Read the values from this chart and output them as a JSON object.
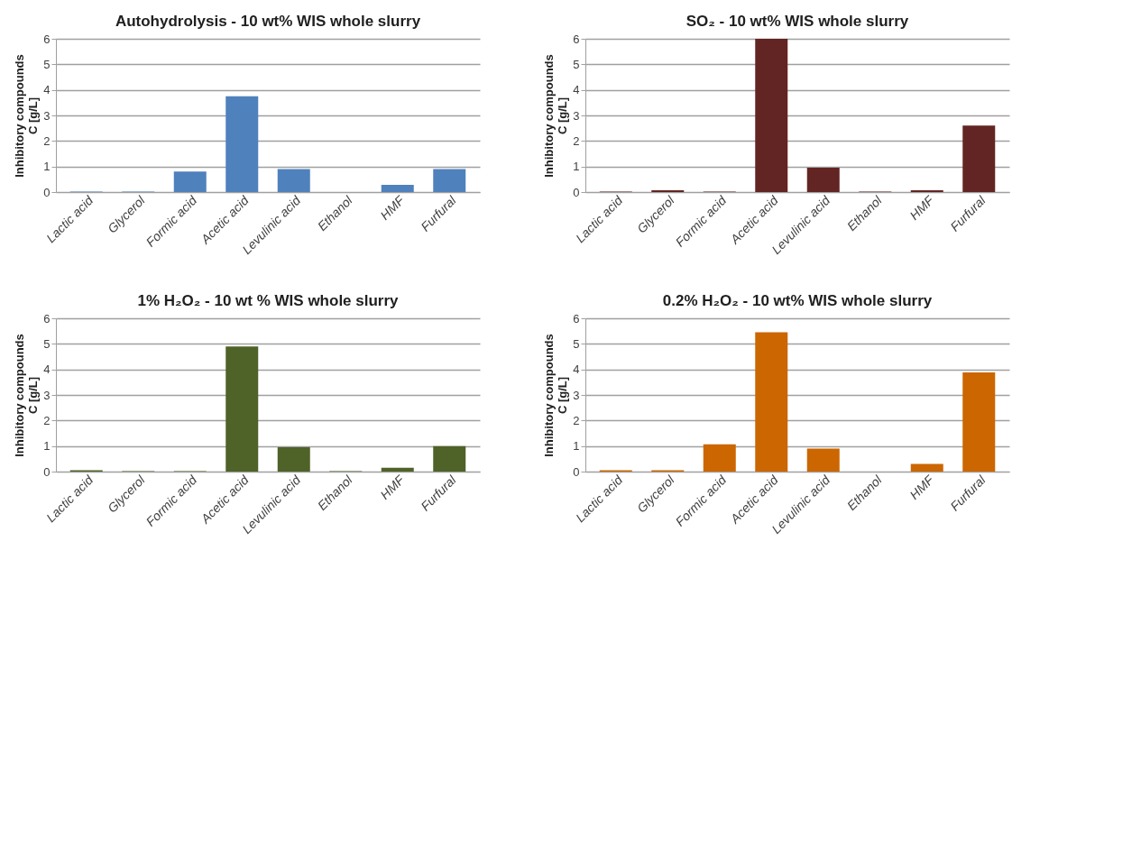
{
  "chart_data": [
    {
      "type": "bar",
      "title": "Autohydrolysis - 10 wt% WIS whole slurry",
      "ylabel": "Inhibitory compounds\nC [g/L]",
      "categories": [
        "Lactic acid",
        "Glycerol",
        "Formic acid",
        "Acetic acid",
        "Levulinic acid",
        "Ethanol",
        "HMF",
        "Furfural"
      ],
      "values": [
        0.02,
        0.02,
        0.8,
        3.75,
        0.9,
        0,
        0.28,
        0.9
      ],
      "color": "#4f81bd",
      "ylim": [
        0,
        6
      ],
      "yticks": [
        0,
        1,
        2,
        3,
        4,
        5,
        6
      ],
      "grid": "y"
    },
    {
      "type": "bar",
      "title": "SO₂ - 10 wt% WIS whole slurry",
      "ylabel": "Inhibitory compounds\nC [g/L]",
      "categories": [
        "Lactic acid",
        "Glycerol",
        "Formic acid",
        "Acetic acid",
        "Levulinic acid",
        "Ethanol",
        "HMF",
        "Furfural"
      ],
      "values": [
        0.02,
        0.07,
        0.02,
        6.0,
        0.95,
        0.02,
        0.07,
        2.6
      ],
      "color": "#632523",
      "ylim": [
        0,
        6
      ],
      "yticks": [
        0,
        1,
        2,
        3,
        4,
        5,
        6
      ],
      "grid": "y"
    },
    {
      "type": "bar",
      "title": "1% H₂O₂ - 10 wt % WIS whole slurry",
      "ylabel": "Inhibitory compounds\nC [g/L]",
      "categories": [
        "Lactic acid",
        "Glycerol",
        "Formic acid",
        "Acetic acid",
        "Levulinic acid",
        "Ethanol",
        "HMF",
        "Furfural"
      ],
      "values": [
        0.05,
        0.02,
        0.02,
        4.9,
        0.95,
        0.02,
        0.15,
        1.0
      ],
      "color": "#4f6228",
      "ylim": [
        0,
        6
      ],
      "yticks": [
        0,
        1,
        2,
        3,
        4,
        5,
        6
      ],
      "grid": "y"
    },
    {
      "type": "bar",
      "title": "0.2% H₂O₂ - 10 wt% WIS whole slurry",
      "ylabel": "Inhibitory compounds\nC [g/L]",
      "categories": [
        "Lactic acid",
        "Glycerol",
        "Formic acid",
        "Acetic acid",
        "Levulinic acid",
        "Ethanol",
        "HMF",
        "Furfural"
      ],
      "values": [
        0.05,
        0.05,
        1.07,
        5.45,
        0.9,
        0,
        0.3,
        3.88
      ],
      "color": "#cc6600",
      "ylim": [
        0,
        6
      ],
      "yticks": [
        0,
        1,
        2,
        3,
        4,
        5,
        6
      ],
      "grid": "y"
    }
  ]
}
